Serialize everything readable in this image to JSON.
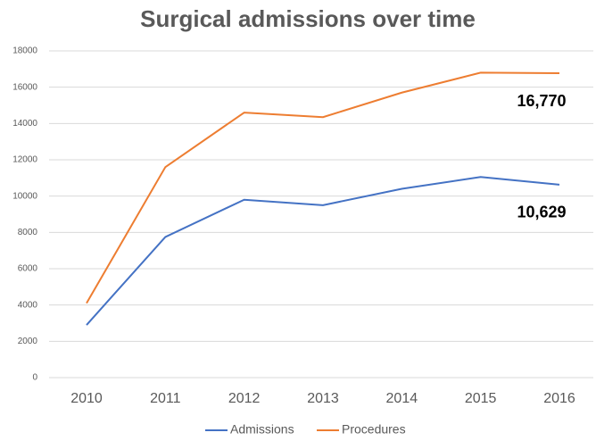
{
  "chart_data": {
    "type": "line",
    "title": "Surgical admissions over time",
    "categories": [
      "2010",
      "2011",
      "2012",
      "2013",
      "2014",
      "2015",
      "2016"
    ],
    "series": [
      {
        "name": "Admissions",
        "color": "#4472c4",
        "values": [
          2900,
          7750,
          9800,
          9500,
          10400,
          11050,
          10629
        ],
        "value_labels": [
          null,
          null,
          null,
          null,
          null,
          null,
          "10,629"
        ]
      },
      {
        "name": "Procedures",
        "color": "#ed7d31",
        "values": [
          4100,
          11600,
          14600,
          14350,
          15700,
          16800,
          16770
        ],
        "value_labels": [
          null,
          null,
          null,
          null,
          null,
          null,
          "16,770"
        ]
      }
    ],
    "ylim": [
      0,
      18000
    ],
    "yticks": [
      0,
      2000,
      4000,
      6000,
      8000,
      10000,
      12000,
      14000,
      16000,
      18000
    ],
    "grid": true,
    "legend": "bottom"
  }
}
